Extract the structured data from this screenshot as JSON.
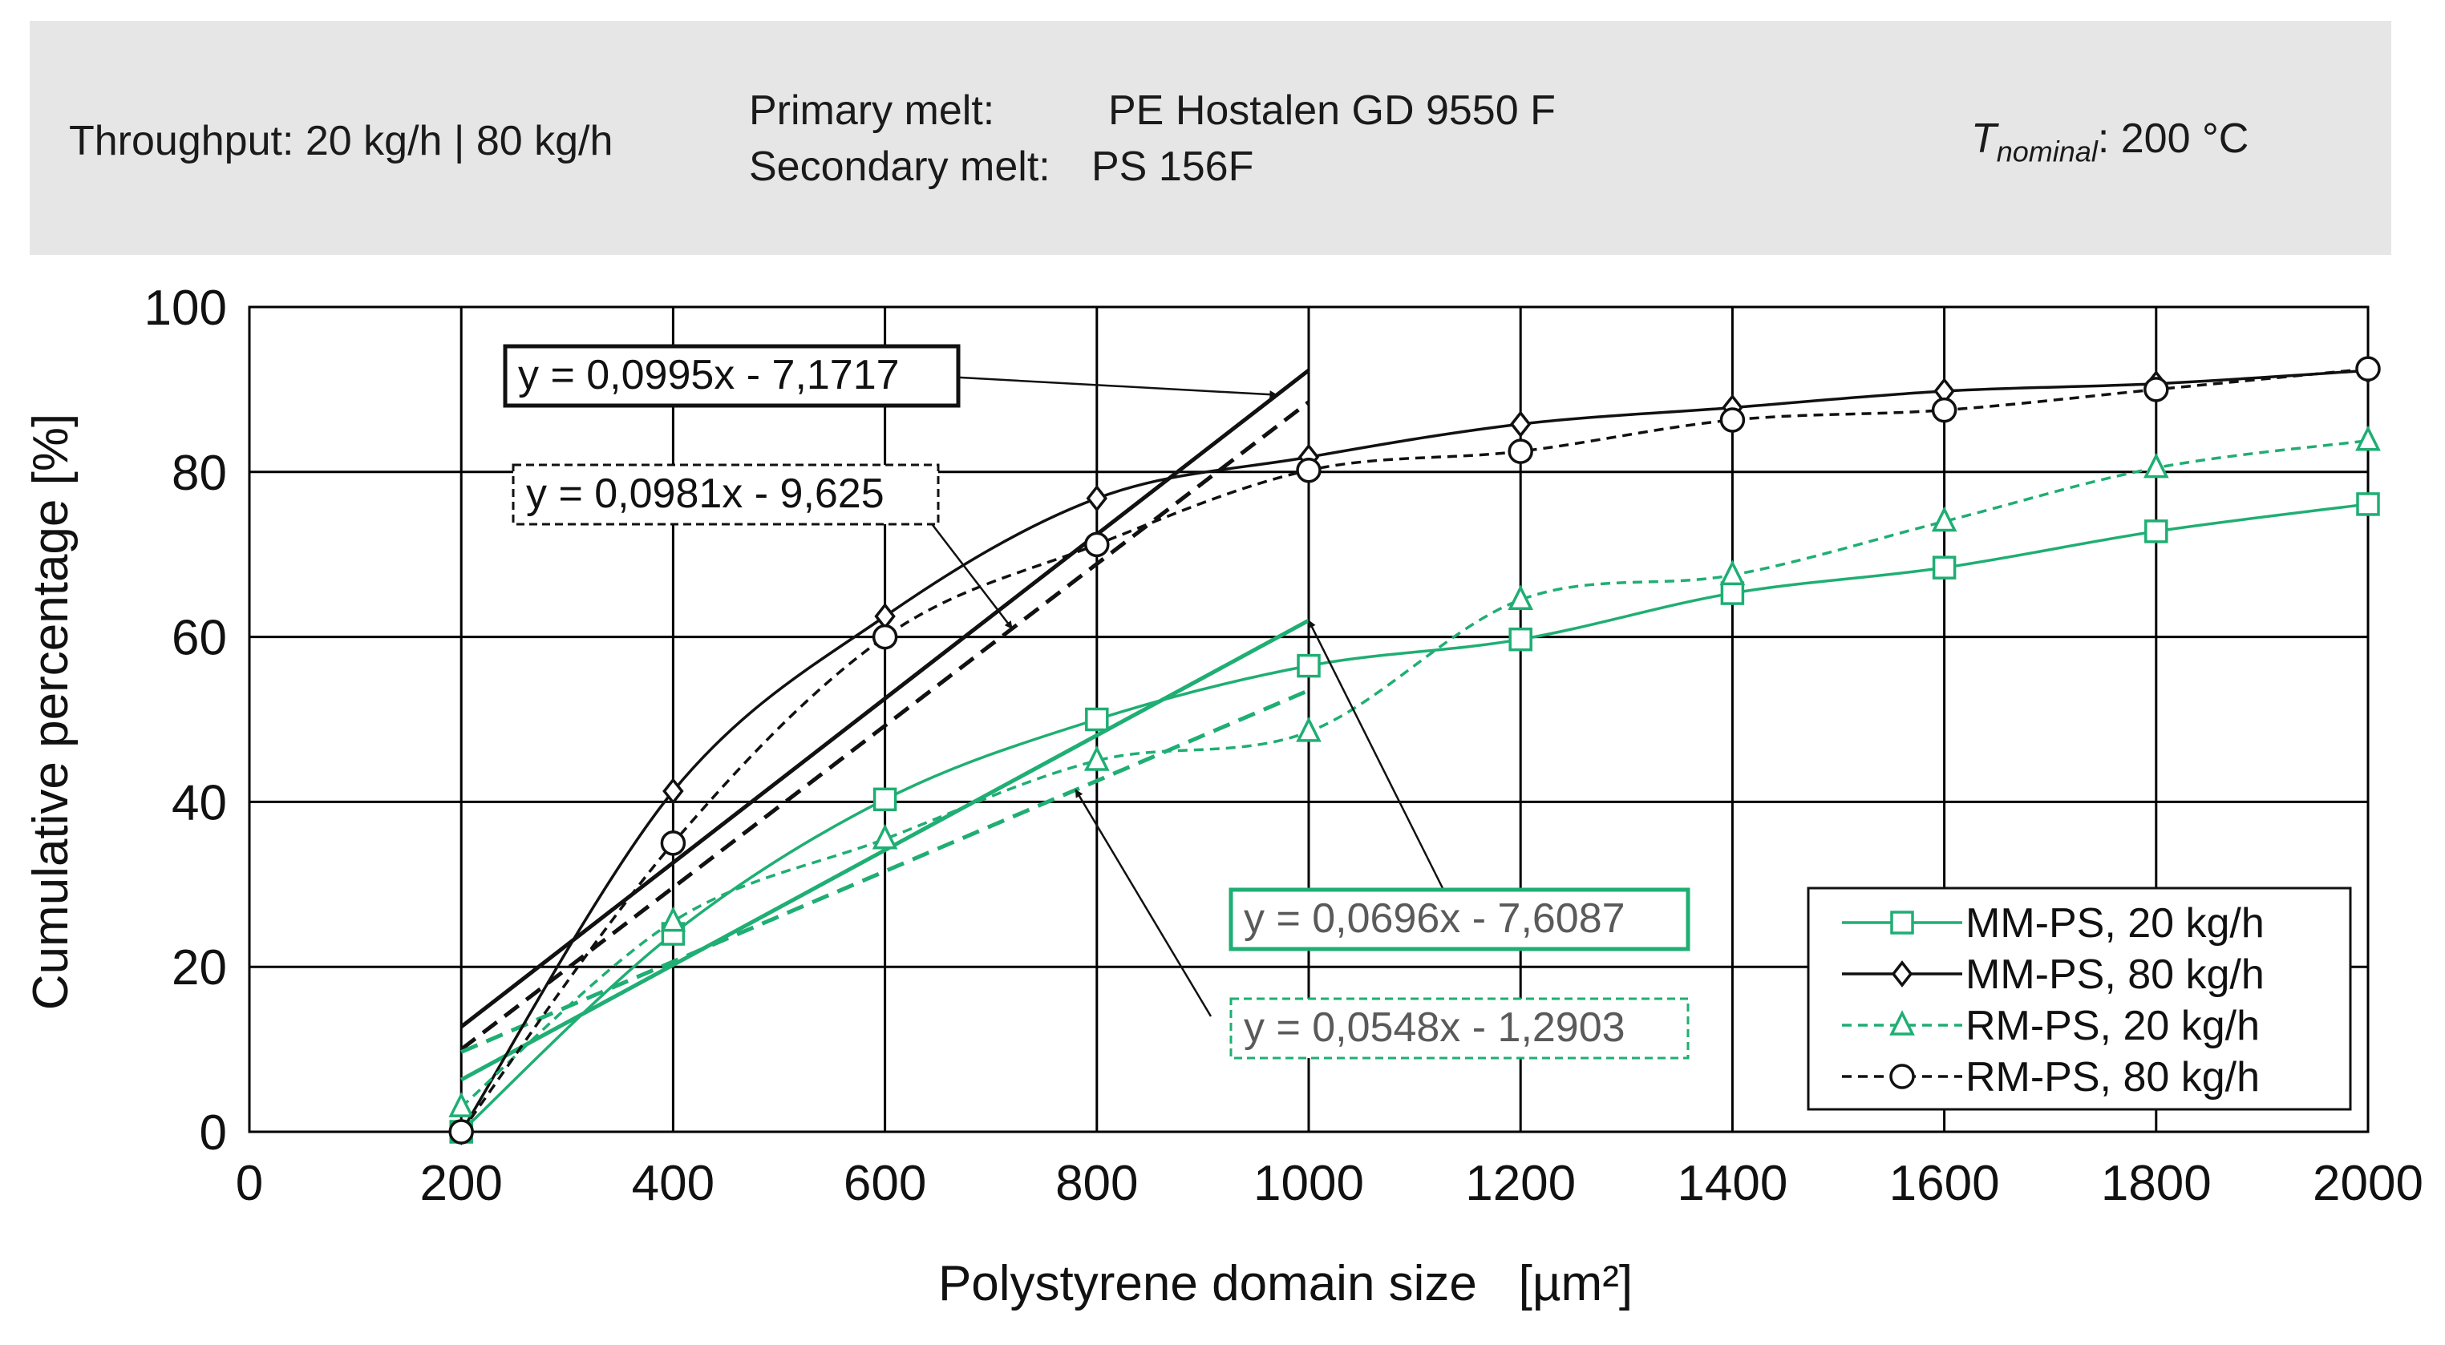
{
  "banner": {
    "throughput": "Throughput: 20 kg/h | 80 kg/h",
    "primary_label": "Primary melt:",
    "primary_value": "PE Hostalen GD 9550 F",
    "secondary_label": "Secondary melt:",
    "secondary_value": "PS 156F",
    "t_symbol": "T",
    "t_subscript": "nominal",
    "t_value": ": 200 °C"
  },
  "colors": {
    "green": "#1fae73",
    "black": "#111111",
    "grid": "#000000"
  },
  "chart_data": {
    "type": "line",
    "xlabel": "Polystyrene domain size   [µm²]",
    "ylabel": "Cumulative percentage [%]",
    "xlim": [
      0,
      2000
    ],
    "ylim": [
      0,
      100
    ],
    "xticks": [
      0,
      200,
      400,
      600,
      800,
      1000,
      1200,
      1400,
      1600,
      1800,
      2000
    ],
    "yticks": [
      0,
      20,
      40,
      60,
      80,
      100
    ],
    "grid": true,
    "legend_position": "bottom-right",
    "series": [
      {
        "name": "MM-PS, 20 kg/h",
        "marker": "square",
        "color": "green",
        "dashed": false,
        "x": [
          200,
          400,
          600,
          800,
          1000,
          1200,
          1400,
          1600,
          1800,
          2000
        ],
        "y": [
          0,
          24,
          40.3,
          50,
          56.5,
          59.7,
          65.3,
          68.4,
          72.8,
          76.1
        ]
      },
      {
        "name": "MM-PS, 80 kg/h",
        "marker": "diamond",
        "color": "black",
        "dashed": false,
        "x": [
          200,
          400,
          600,
          800,
          1000,
          1200,
          1400,
          1600,
          1800,
          2000
        ],
        "y": [
          0,
          41.3,
          62.5,
          76.8,
          81.8,
          85.8,
          87.8,
          89.8,
          90.7,
          92.3
        ]
      },
      {
        "name": "RM-PS, 20 kg/h",
        "marker": "triangle",
        "color": "green",
        "dashed": true,
        "x": [
          200,
          400,
          600,
          800,
          1000,
          1200,
          1400,
          1600,
          1800,
          2000
        ],
        "y": [
          3,
          25.5,
          35.5,
          45,
          48.5,
          64.5,
          67.5,
          74,
          80.5,
          83.8
        ]
      },
      {
        "name": "RM-PS, 80 kg/h",
        "marker": "circle",
        "color": "black",
        "dashed": true,
        "x": [
          200,
          400,
          600,
          800,
          1000,
          1200,
          1400,
          1600,
          1800,
          2000
        ],
        "y": [
          0,
          35,
          60,
          71.2,
          80.2,
          82.5,
          86.3,
          87.5,
          90,
          92.5
        ]
      }
    ],
    "trendlines": [
      {
        "label": "y = 0,0995x - 7,1717",
        "slope": 0.0995,
        "intercept": -7.1717,
        "x_range": [
          200,
          1000
        ],
        "color": "black",
        "dashed": false,
        "box": "solid",
        "arrow_to_x": 970
      },
      {
        "label": "y = 0,0981x - 9,625",
        "slope": 0.0981,
        "intercept": -9.625,
        "x_range": [
          200,
          1000
        ],
        "color": "black",
        "dashed": true,
        "box": "dashed",
        "arrow_to_x": 720
      },
      {
        "label": "y = 0,0696x - 7,6087",
        "slope": 0.0696,
        "intercept": -7.6087,
        "x_range": [
          200,
          1000
        ],
        "color": "green",
        "dashed": false,
        "box": "solid",
        "arrow_to_x": 1000
      },
      {
        "label": "y = 0,0548x - 1,2903",
        "slope": 0.0548,
        "intercept": -1.2903,
        "x_range": [
          200,
          1000
        ],
        "color": "green",
        "dashed": true,
        "box": "dashed",
        "arrow_to_x": 780
      }
    ]
  }
}
